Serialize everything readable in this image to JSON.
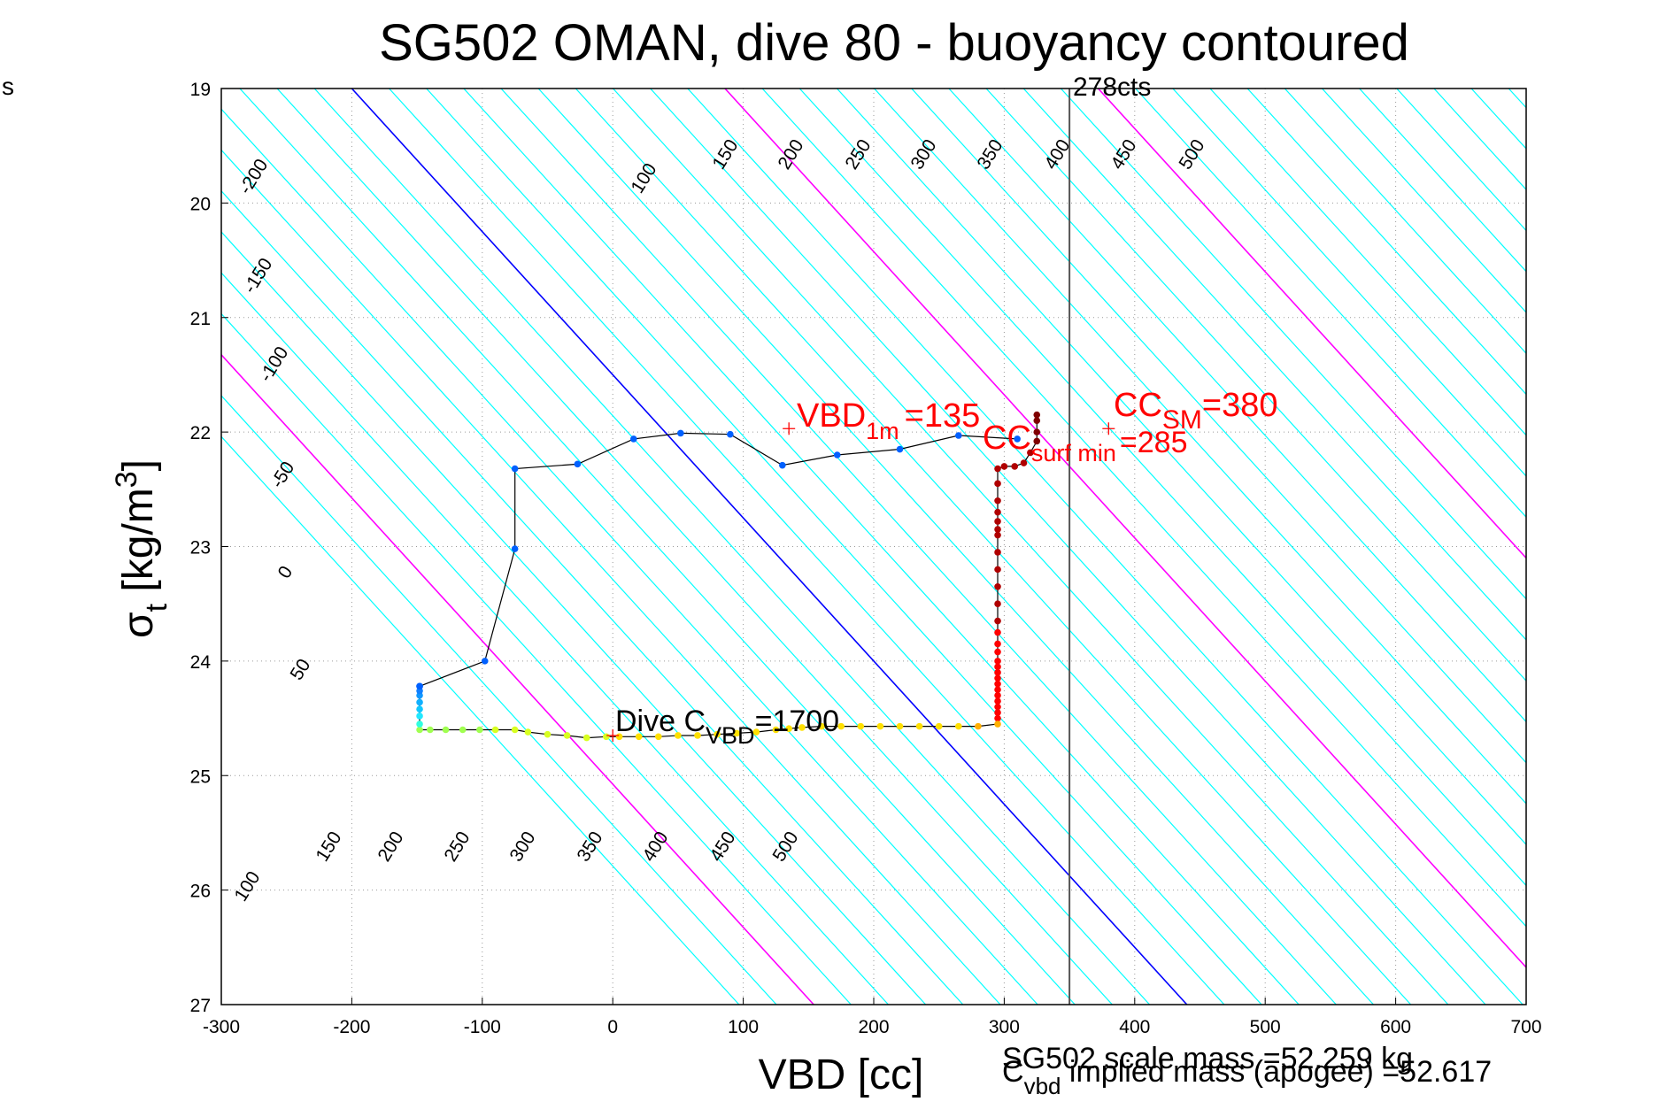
{
  "chart_data": {
    "type": "scatter",
    "title": "SG502 OMAN, dive 80 - buoyancy contoured",
    "xlabel": "VBD [cc]",
    "ylabel_main": "σ",
    "ylabel_sub": "t",
    "ylabel_rest": " [kg/m",
    "ylabel_sup": "3",
    "ylabel_close": "]",
    "xlim": [
      -300,
      700
    ],
    "ylim": [
      19,
      27
    ],
    "y_reversed": true,
    "grid": true,
    "x_ticks": [
      "-300",
      "-200",
      "-100",
      "0",
      "100",
      "200",
      "300",
      "400",
      "500",
      "600",
      "700"
    ],
    "y_ticks": [
      "19",
      "20",
      "21",
      "22",
      "23",
      "24",
      "25",
      "26",
      "27"
    ],
    "corner_text": "s",
    "top_label": "278cts",
    "vertical_line_x": 350,
    "contour_labels_left": [
      "-200",
      "-150",
      "-100",
      "-50",
      "0",
      "50",
      "100",
      "150",
      "200",
      "250",
      "300",
      "350",
      "400",
      "450",
      "500"
    ],
    "contour_labels_top": [
      "100",
      "150",
      "200",
      "250",
      "300",
      "350",
      "400",
      "450",
      "500"
    ],
    "contour_colors": {
      "regular": "#00ffff",
      "zero": "#0000ff",
      "hundreds": "#ff00ff"
    },
    "annotations": {
      "vbd1m": {
        "main": "VBD",
        "sub": "1m",
        "value": "=135"
      },
      "cc_surf": {
        "main": "CC",
        "sub": "surf min",
        "value": "=285"
      },
      "cc_sm": {
        "main": "CC",
        "sub": "SM",
        "value": "=380"
      },
      "dive_c": {
        "main": "Dive C",
        "sub": "VBD",
        "value": "=1700"
      }
    },
    "markers": [
      {
        "x": 135,
        "y": 21.97
      },
      {
        "x": 380,
        "y": 21.97
      },
      {
        "x": 0,
        "y": 24.65
      }
    ],
    "descent_series": [
      {
        "x": 325,
        "y": 21.85
      },
      {
        "x": 325,
        "y": 21.9
      },
      {
        "x": 325,
        "y": 22.0
      },
      {
        "x": 325,
        "y": 22.08
      },
      {
        "x": 320,
        "y": 22.18
      },
      {
        "x": 315,
        "y": 22.27
      },
      {
        "x": 308,
        "y": 22.3
      },
      {
        "x": 300,
        "y": 22.3
      },
      {
        "x": 295,
        "y": 22.32
      },
      {
        "x": 295,
        "y": 22.45
      },
      {
        "x": 295,
        "y": 22.6
      },
      {
        "x": 295,
        "y": 22.7
      },
      {
        "x": 295,
        "y": 22.78
      },
      {
        "x": 295,
        "y": 22.85
      },
      {
        "x": 295,
        "y": 22.9
      },
      {
        "x": 295,
        "y": 23.05
      },
      {
        "x": 295,
        "y": 23.2
      },
      {
        "x": 295,
        "y": 23.35
      },
      {
        "x": 295,
        "y": 23.5
      },
      {
        "x": 295,
        "y": 23.65
      },
      {
        "x": 295,
        "y": 23.75
      },
      {
        "x": 295,
        "y": 23.85
      },
      {
        "x": 295,
        "y": 23.92
      },
      {
        "x": 295,
        "y": 24.0
      },
      {
        "x": 295,
        "y": 24.05
      },
      {
        "x": 295,
        "y": 24.1
      },
      {
        "x": 295,
        "y": 24.15
      },
      {
        "x": 295,
        "y": 24.2
      },
      {
        "x": 295,
        "y": 24.25
      },
      {
        "x": 295,
        "y": 24.3
      },
      {
        "x": 295,
        "y": 24.35
      },
      {
        "x": 295,
        "y": 24.4
      },
      {
        "x": 295,
        "y": 24.45
      },
      {
        "x": 295,
        "y": 24.5
      },
      {
        "x": 295,
        "y": 24.55
      },
      {
        "x": 280,
        "y": 24.57
      },
      {
        "x": 265,
        "y": 24.57
      },
      {
        "x": 250,
        "y": 24.57
      },
      {
        "x": 235,
        "y": 24.57
      },
      {
        "x": 220,
        "y": 24.57
      },
      {
        "x": 205,
        "y": 24.57
      },
      {
        "x": 190,
        "y": 24.57
      },
      {
        "x": 175,
        "y": 24.57
      },
      {
        "x": 160,
        "y": 24.57
      },
      {
        "x": 145,
        "y": 24.58
      },
      {
        "x": 135,
        "y": 24.59
      },
      {
        "x": 125,
        "y": 24.6
      },
      {
        "x": 110,
        "y": 24.62
      },
      {
        "x": 95,
        "y": 24.63
      },
      {
        "x": 80,
        "y": 24.64
      },
      {
        "x": 65,
        "y": 24.65
      },
      {
        "x": 50,
        "y": 24.65
      },
      {
        "x": 35,
        "y": 24.66
      },
      {
        "x": 20,
        "y": 24.66
      },
      {
        "x": 5,
        "y": 24.66
      },
      {
        "x": -5,
        "y": 24.66
      },
      {
        "x": -20,
        "y": 24.67
      },
      {
        "x": -35,
        "y": 24.65
      },
      {
        "x": -50,
        "y": 24.64
      },
      {
        "x": -65,
        "y": 24.62
      },
      {
        "x": -75,
        "y": 24.6
      },
      {
        "x": -90,
        "y": 24.6
      },
      {
        "x": -102,
        "y": 24.6
      },
      {
        "x": -115,
        "y": 24.6
      },
      {
        "x": -128,
        "y": 24.6
      },
      {
        "x": -140,
        "y": 24.6
      },
      {
        "x": -148,
        "y": 24.6
      }
    ],
    "descent_colors": [
      "#7f0000",
      "#b00000",
      "#ff0000",
      "#ff5a00",
      "#ffb000",
      "#ffe000",
      "#d8ff20",
      "#a0ff50",
      "#70ff80",
      "#40ffb8"
    ],
    "descent_color_breaks": [
      34,
      36,
      55,
      62,
      68
    ],
    "bottom_series": [
      {
        "x": -148,
        "y": 24.55
      },
      {
        "x": -148,
        "y": 24.48
      },
      {
        "x": -148,
        "y": 24.42
      },
      {
        "x": -148,
        "y": 24.36
      },
      {
        "x": -148,
        "y": 24.3
      },
      {
        "x": -148,
        "y": 24.26
      },
      {
        "x": -148,
        "y": 24.22
      }
    ],
    "ascent_series": [
      {
        "x": -148,
        "y": 24.22
      },
      {
        "x": -98,
        "y": 24.0
      },
      {
        "x": -75,
        "y": 23.02
      },
      {
        "x": -75,
        "y": 22.32
      },
      {
        "x": -27,
        "y": 22.28
      },
      {
        "x": 16,
        "y": 22.06
      },
      {
        "x": 52,
        "y": 22.01
      },
      {
        "x": 90,
        "y": 22.02
      },
      {
        "x": 130,
        "y": 22.29
      },
      {
        "x": 172,
        "y": 22.2
      },
      {
        "x": 220,
        "y": 22.15
      },
      {
        "x": 265,
        "y": 22.03
      },
      {
        "x": 310,
        "y": 22.06
      }
    ],
    "ascent_color": "#0060ff",
    "footer_mass": "SG502 scale mass =52.259 kg",
    "footer_implied_main": "C",
    "footer_implied_sub": "vbd",
    "footer_implied_rest": " implied mass (apogee) =52.617"
  }
}
